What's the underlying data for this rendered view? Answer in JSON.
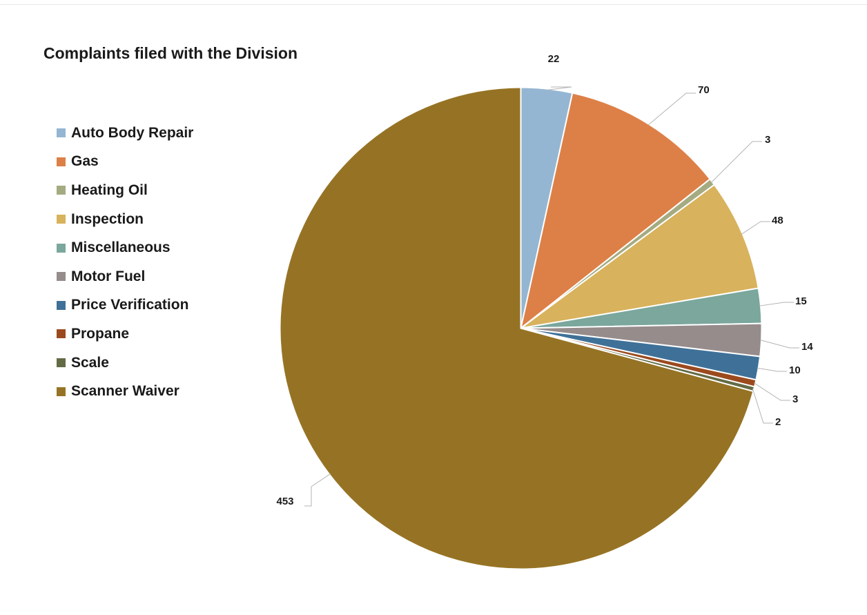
{
  "chart_data": {
    "type": "pie",
    "title": "Complaints filed with the Division",
    "legend_position": "left",
    "categories": [
      "Auto Body Repair",
      "Gas",
      "Heating Oil",
      "Inspection",
      "Miscellaneous",
      "Motor Fuel",
      "Price Verification",
      "Propane",
      "Scale",
      "Scanner Waiver"
    ],
    "values": [
      22,
      70,
      3,
      48,
      15,
      14,
      10,
      3,
      2,
      453
    ],
    "colors": [
      "#94b6d2",
      "#dd8047",
      "#a5ab81",
      "#d8b25c",
      "#7ba79d",
      "#968c8c",
      "#3f7198",
      "#9b4a1e",
      "#636b46",
      "#967324"
    ]
  }
}
